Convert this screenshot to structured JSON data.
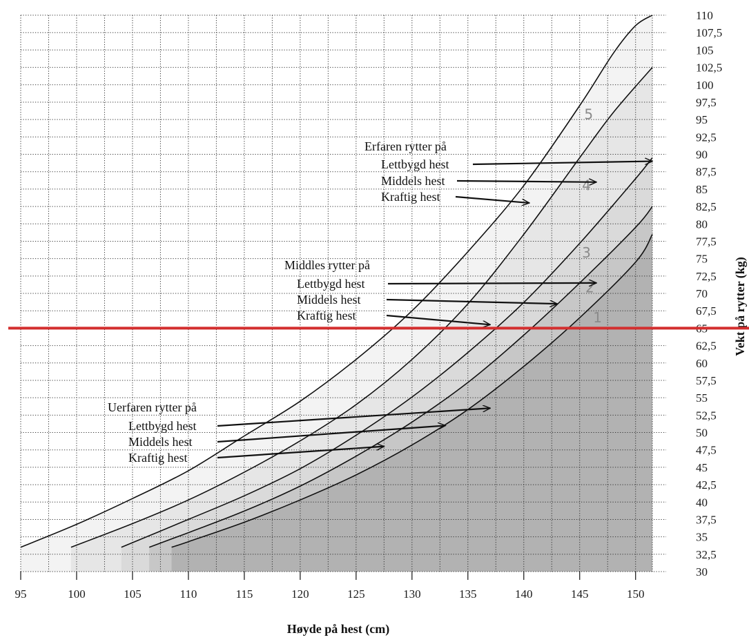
{
  "chart_data": {
    "type": "line",
    "xlabel": "Høyde på hest (cm)",
    "ylabel": "Vekt på rytter (kg)",
    "xlim": [
      95,
      151.5
    ],
    "ylim": [
      30,
      110
    ],
    "x_ticks": [
      "95",
      "100",
      "105",
      "110",
      "115",
      "120",
      "125",
      "130",
      "135",
      "140",
      "145",
      "150"
    ],
    "y_ticks": [
      "30",
      "32,5",
      "35",
      "37,5",
      "40",
      "42,5",
      "45",
      "47,5",
      "50",
      "52,5",
      "55",
      "57,5",
      "60",
      "62,5",
      "65",
      "67,5",
      "70",
      "72,5",
      "75",
      "77,5",
      "80",
      "82,5",
      "85",
      "87,5",
      "90",
      "92,5",
      "95",
      "97,5",
      "100",
      "102,5",
      "105",
      "107,5",
      "110"
    ],
    "grid": true,
    "y_axis_side": "right",
    "series": [
      {
        "label": "5",
        "color": "#f3f3f3",
        "x": [
          95,
          100,
          105,
          110,
          115,
          120,
          125,
          130,
          135,
          140,
          145,
          148,
          150,
          151.5
        ],
        "y": [
          33.5,
          36.8,
          40.5,
          44.5,
          49.5,
          54.5,
          60.5,
          67.5,
          76,
          85.5,
          97,
          104.5,
          108.5,
          110
        ]
      },
      {
        "label": "4",
        "color": "#e6e6e6",
        "x": [
          99.5,
          105,
          110,
          115,
          120,
          125,
          130,
          135,
          140,
          145,
          148,
          151.5
        ],
        "y": [
          33.5,
          36.9,
          40.3,
          44.3,
          48.8,
          54,
          60.5,
          68.5,
          78.5,
          89.5,
          96,
          102.5
        ]
      },
      {
        "label": "3",
        "color": "#dadada",
        "x": [
          104,
          110,
          115,
          120,
          125,
          130,
          135,
          140,
          145,
          150,
          151.5
        ],
        "y": [
          33.5,
          37.5,
          40.9,
          44.8,
          49.6,
          55.1,
          61.5,
          68.7,
          77.2,
          86.5,
          89.5
        ]
      },
      {
        "label": "2",
        "color": "#c7c7c7",
        "x": [
          106.5,
          110,
          115,
          120,
          125,
          130,
          135,
          140,
          145,
          150,
          151.5
        ],
        "y": [
          33.5,
          35.6,
          38.7,
          42.3,
          46.6,
          51.5,
          57.2,
          64,
          71.5,
          79.5,
          82.5
        ]
      },
      {
        "label": "1",
        "color": "#b2b2b2",
        "x": [
          108.5,
          110,
          115,
          120,
          125,
          130,
          135,
          140,
          145,
          150,
          151.5
        ],
        "y": [
          33.5,
          34.3,
          37.1,
          40.3,
          43.9,
          48.2,
          53.3,
          59.5,
          66.5,
          74.5,
          78.5
        ]
      }
    ],
    "annotations": [
      {
        "heading": "Erfaren rytter på",
        "items": [
          {
            "text": "Lettbygd hest",
            "arrow_to": [
              151.5,
              89
            ]
          },
          {
            "text": "Middels hest",
            "arrow_to": [
              146.5,
              86
            ]
          },
          {
            "text": "Kraftig hest",
            "arrow_to": [
              140.5,
              83
            ]
          }
        ]
      },
      {
        "heading": "Middles rytter på",
        "items": [
          {
            "text": "Lettbygd hest",
            "arrow_to": [
              146.5,
              71.5
            ]
          },
          {
            "text": "Middels hest",
            "arrow_to": [
              143,
              68.5
            ]
          },
          {
            "text": "Kraftig hest",
            "arrow_to": [
              137,
              65.5
            ]
          }
        ]
      },
      {
        "heading": "Uerfaren rytter på",
        "items": [
          {
            "text": "Lettbygd hest",
            "arrow_to": [
              137,
              53.5
            ]
          },
          {
            "text": "Middels hest",
            "arrow_to": [
              133,
              51
            ]
          },
          {
            "text": "Kraftig hest",
            "arrow_to": [
              127.5,
              48
            ]
          }
        ]
      }
    ],
    "reference_line": {
      "y": 65,
      "color": "#d32f2f"
    }
  }
}
